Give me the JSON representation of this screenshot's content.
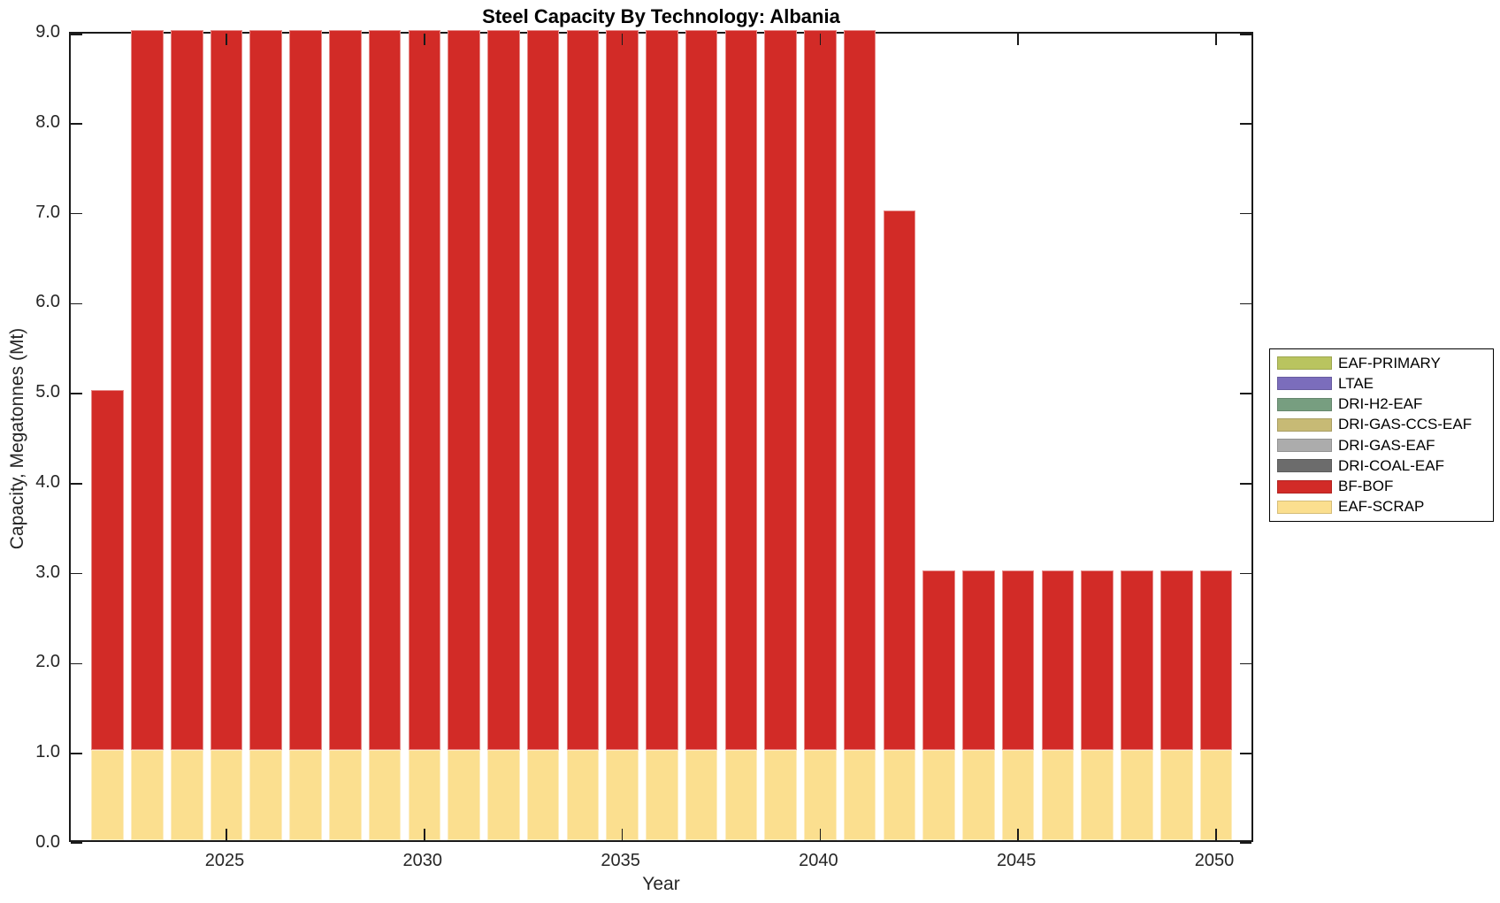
{
  "title": "Steel Capacity By Technology: Albania",
  "xlabel": "Year",
  "ylabel": "Capacity, Megatonnes (Mt)",
  "chart_data": {
    "type": "bar",
    "stacked": true,
    "title": "Steel Capacity By Technology: Albania",
    "xlabel": "Year",
    "ylabel": "Capacity, Megatonnes (Mt)",
    "x": [
      2022,
      2023,
      2024,
      2025,
      2026,
      2027,
      2028,
      2029,
      2030,
      2031,
      2032,
      2033,
      2034,
      2035,
      2036,
      2037,
      2038,
      2039,
      2040,
      2041,
      2042,
      2043,
      2044,
      2045,
      2046,
      2047,
      2048,
      2049,
      2050
    ],
    "series": [
      {
        "name": "EAF-PRIMARY",
        "color": "#B9C45F",
        "values": [
          0,
          0,
          0,
          0,
          0,
          0,
          0,
          0,
          0,
          0,
          0,
          0,
          0,
          0,
          0,
          0,
          0,
          0,
          0,
          0,
          0,
          0,
          0,
          0,
          0,
          0,
          0,
          0,
          0
        ]
      },
      {
        "name": "LTAE",
        "color": "#7B6DBC",
        "values": [
          0,
          0,
          0,
          0,
          0,
          0,
          0,
          0,
          0,
          0,
          0,
          0,
          0,
          0,
          0,
          0,
          0,
          0,
          0,
          0,
          0,
          0,
          0,
          0,
          0,
          0,
          0,
          0,
          0
        ]
      },
      {
        "name": "DRI-H2-EAF",
        "color": "#779E80",
        "values": [
          0,
          0,
          0,
          0,
          0,
          0,
          0,
          0,
          0,
          0,
          0,
          0,
          0,
          0,
          0,
          0,
          0,
          0,
          0,
          0,
          0,
          0,
          0,
          0,
          0,
          0,
          0,
          0,
          0
        ]
      },
      {
        "name": "DRI-GAS-CCS-EAF",
        "color": "#C7BA75",
        "values": [
          0,
          0,
          0,
          0,
          0,
          0,
          0,
          0,
          0,
          0,
          0,
          0,
          0,
          0,
          0,
          0,
          0,
          0,
          0,
          0,
          0,
          0,
          0,
          0,
          0,
          0,
          0,
          0,
          0
        ]
      },
      {
        "name": "DRI-GAS-EAF",
        "color": "#ACACAC",
        "values": [
          0,
          0,
          0,
          0,
          0,
          0,
          0,
          0,
          0,
          0,
          0,
          0,
          0,
          0,
          0,
          0,
          0,
          0,
          0,
          0,
          0,
          0,
          0,
          0,
          0,
          0,
          0,
          0,
          0
        ]
      },
      {
        "name": "DRI-COAL-EAF",
        "color": "#6C6C6C",
        "values": [
          0,
          0,
          0,
          0,
          0,
          0,
          0,
          0,
          0,
          0,
          0,
          0,
          0,
          0,
          0,
          0,
          0,
          0,
          0,
          0,
          0,
          0,
          0,
          0,
          0,
          0,
          0,
          0,
          0
        ]
      },
      {
        "name": "BF-BOF",
        "color": "#D22B27",
        "values": [
          4,
          8,
          8,
          8,
          8,
          8,
          8,
          8,
          8,
          8,
          8,
          8,
          8,
          8,
          8,
          8,
          8,
          8,
          8,
          8,
          6,
          2,
          2,
          2,
          2,
          2,
          2,
          2,
          2
        ]
      },
      {
        "name": "EAF-SCRAP",
        "color": "#FBDF8F",
        "values": [
          1,
          1,
          1,
          1,
          1,
          1,
          1,
          1,
          1,
          1,
          1,
          1,
          1,
          1,
          1,
          1,
          1,
          1,
          1,
          1,
          1,
          1,
          1,
          1,
          1,
          1,
          1,
          1,
          1
        ]
      }
    ],
    "stack_order": "last-series-at-bottom",
    "ylim": [
      0,
      9
    ],
    "yticks": [
      "0.0",
      "1.0",
      "2.0",
      "3.0",
      "4.0",
      "5.0",
      "6.0",
      "7.0",
      "8.0",
      "9.0"
    ],
    "xticks": [
      2025,
      2030,
      2035,
      2040,
      2045,
      2050
    ],
    "legend_position": "right-outside",
    "grid": false,
    "tick_direction": "in",
    "box": true,
    "axis_color": "#1a1a1a"
  }
}
